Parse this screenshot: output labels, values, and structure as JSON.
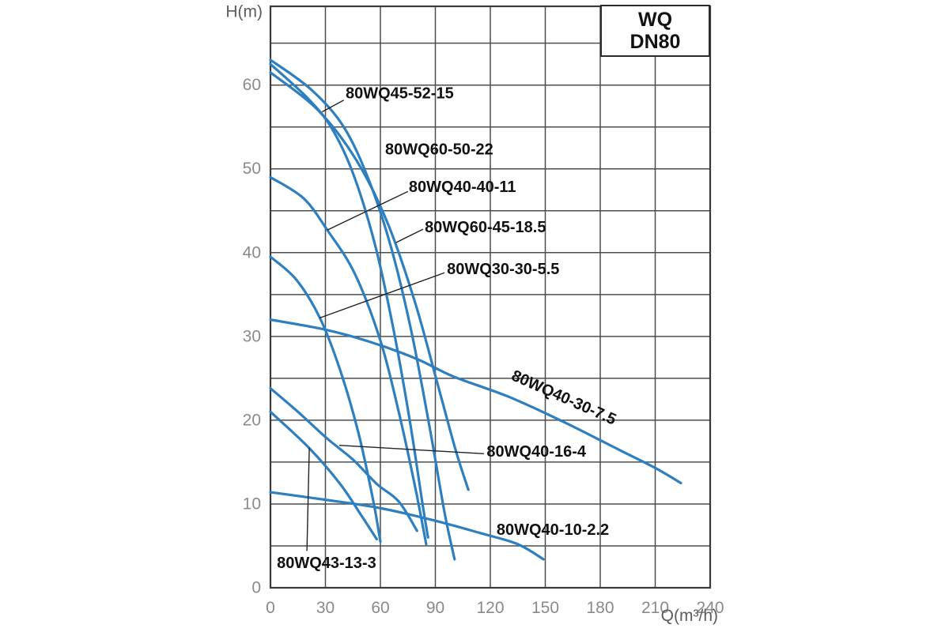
{
  "chart_data": {
    "type": "line",
    "title": "WQ DN80",
    "title_box": {
      "line1": "WQ",
      "line2": "DN80"
    },
    "xlabel": "Q(m³/h)",
    "ylabel": "H(m)",
    "xlim": [
      0,
      240
    ],
    "ylim": [
      0,
      69.4
    ],
    "x_ticks": [
      0,
      30,
      60,
      90,
      120,
      150,
      180,
      210,
      240
    ],
    "y_ticks": [
      0,
      10,
      20,
      30,
      40,
      50,
      60
    ],
    "x_grid_step": 30,
    "y_grid_step": 5,
    "grid": true,
    "legend_position": "none (curves labeled inline)",
    "colors": {
      "curve": "#2e7fc0",
      "grid": "#4d4d4d",
      "border": "#3a3a3a",
      "tick_text": "#8a8a8a",
      "axis_title_text": "#5c5c5c",
      "label_text": "#111111",
      "leader_line": "#222222",
      "background": "#ffffff"
    },
    "series": [
      {
        "name": "80WQ45-52-15",
        "points": [
          [
            0,
            62.5
          ],
          [
            20,
            58.5
          ],
          [
            33,
            55
          ],
          [
            45,
            49.5
          ],
          [
            57,
            41
          ],
          [
            67,
            31
          ],
          [
            76,
            20
          ],
          [
            83,
            10
          ],
          [
            86,
            6
          ]
        ]
      },
      {
        "name": "80WQ60-50-22",
        "points": [
          [
            0,
            63
          ],
          [
            22,
            59.5
          ],
          [
            40,
            55
          ],
          [
            54,
            48.5
          ],
          [
            66,
            40.5
          ],
          [
            77,
            30.5
          ],
          [
            87,
            19
          ],
          [
            95,
            9
          ],
          [
            100.5,
            3.4
          ]
        ]
      },
      {
        "name": "80WQ60-45-18.5",
        "points": [
          [
            0,
            61.5
          ],
          [
            26,
            57
          ],
          [
            47,
            51
          ],
          [
            64,
            43.5
          ],
          [
            79,
            34
          ],
          [
            91,
            24.5
          ],
          [
            101,
            16.5
          ],
          [
            108,
            11.7
          ]
        ]
      },
      {
        "name": "80WQ40-40-11",
        "points": [
          [
            0,
            49
          ],
          [
            18,
            46.5
          ],
          [
            31,
            42.7
          ],
          [
            46,
            37.5
          ],
          [
            60,
            29.5
          ],
          [
            70,
            21
          ],
          [
            79,
            12
          ],
          [
            85,
            5.2
          ]
        ]
      },
      {
        "name": "80WQ30-30-5.5",
        "points": [
          [
            0,
            39.5
          ],
          [
            14,
            36.8
          ],
          [
            27,
            32.2
          ],
          [
            38,
            26
          ],
          [
            48,
            18.5
          ],
          [
            56,
            10.5
          ],
          [
            60,
            5.5
          ]
        ]
      },
      {
        "name": "80WQ40-30-7.5",
        "points": [
          [
            0,
            32
          ],
          [
            30,
            30.8
          ],
          [
            55,
            29.3
          ],
          [
            80,
            27.3
          ],
          [
            100,
            25.2
          ],
          [
            130,
            22.8
          ],
          [
            160,
            19.8
          ],
          [
            190,
            16.5
          ],
          [
            210,
            14.3
          ],
          [
            224,
            12.5
          ]
        ]
      },
      {
        "name": "80WQ40-16-4",
        "points": [
          [
            0,
            23.8
          ],
          [
            15,
            21
          ],
          [
            31,
            17.8
          ],
          [
            45,
            15.3
          ],
          [
            58,
            12.4
          ],
          [
            70,
            10.3
          ],
          [
            80,
            6.8
          ]
        ]
      },
      {
        "name": "80WQ43-13-3",
        "points": [
          [
            0,
            21
          ],
          [
            21,
            16.7
          ],
          [
            38,
            12.4
          ],
          [
            50,
            8.5
          ],
          [
            58,
            5.8
          ]
        ]
      },
      {
        "name": "80WQ40-10-2.2",
        "points": [
          [
            0,
            11.4
          ],
          [
            30,
            10.5
          ],
          [
            60,
            9.5
          ],
          [
            90,
            8
          ],
          [
            115,
            6.5
          ],
          [
            135,
            5.2
          ],
          [
            149,
            3.4
          ]
        ]
      }
    ],
    "annotations": [
      {
        "text": "80WQ45-52-15",
        "q": 41,
        "h": 59,
        "rotation": 0,
        "leader": [
          [
            40,
            58.2
          ],
          [
            28.2,
            56.8
          ]
        ]
      },
      {
        "text": "80WQ60-50-22",
        "q": 62.6,
        "h": 52.3,
        "rotation": 0,
        "leader": null
      },
      {
        "text": "80WQ40-40-11",
        "q": 75.5,
        "h": 47.8,
        "rotation": 0,
        "leader": [
          [
            75,
            47.3
          ],
          [
            31.1,
            42.7
          ]
        ]
      },
      {
        "text": "80WQ60-45-18.5",
        "q": 84.2,
        "h": 43.0,
        "rotation": 0,
        "leader": [
          [
            83.3,
            42.8
          ],
          [
            68.5,
            41.2
          ]
        ]
      },
      {
        "text": "80WQ30-30-5.5",
        "q": 96.3,
        "h": 38.0,
        "rotation": 0,
        "leader": [
          [
            95,
            37.6
          ],
          [
            26.8,
            32.2
          ]
        ]
      },
      {
        "text": "80WQ40-30-7.5",
        "q": 132,
        "h": 25.4,
        "rotation": 24,
        "leader": null
      },
      {
        "text": "80WQ40-16-4",
        "q": 118,
        "h": 16.2,
        "rotation": 0,
        "leader": [
          [
            116.5,
            16.0
          ],
          [
            37.5,
            17.0
          ]
        ]
      },
      {
        "text": "80WQ40-10-2.2",
        "q": 123.4,
        "h": 6.9,
        "rotation": 0,
        "leader": null
      },
      {
        "text": "80WQ43-13-3",
        "q": 3.5,
        "h": 2.9,
        "rotation": 0,
        "leader": [
          [
            19.9,
            4.4
          ],
          [
            21.2,
            16.7
          ]
        ]
      }
    ]
  }
}
